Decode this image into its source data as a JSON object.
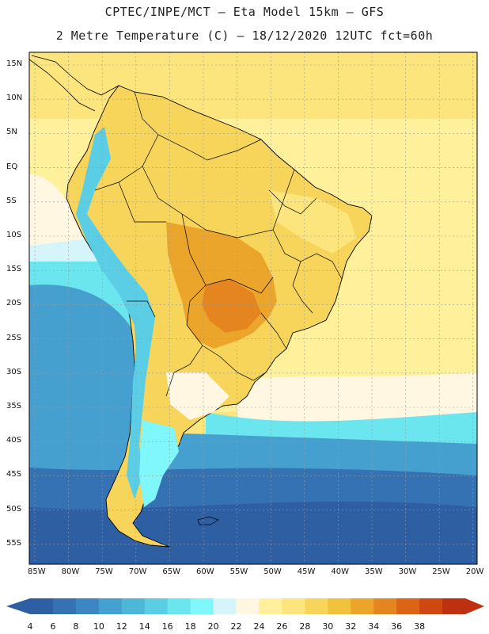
{
  "title_line1": "CPTEC/INPE/MCT  –   Eta Model 15km  –  GFS",
  "title_line2": "2 Metre Temperature (C)  –  18/12/2020 12UTC fct=60h",
  "lat_labels": [
    "15N",
    "10N",
    "5N",
    "EQ",
    "5S",
    "10S",
    "15S",
    "20S",
    "25S",
    "30S",
    "35S",
    "40S",
    "45S",
    "50S",
    "55S"
  ],
  "lon_labels": [
    "85W",
    "80W",
    "75W",
    "70W",
    "65W",
    "60W",
    "55W",
    "50W",
    "45W",
    "40W",
    "35W",
    "30W",
    "25W",
    "20W"
  ],
  "colorbar": {
    "labels": [
      "4",
      "6",
      "8",
      "10",
      "12",
      "14",
      "16",
      "18",
      "20",
      "22",
      "24",
      "26",
      "28",
      "30",
      "32",
      "34",
      "36",
      "38"
    ],
    "colors": [
      "#2e5fa3",
      "#3572b4",
      "#3c86c4",
      "#45a0cf",
      "#4db7d8",
      "#5bcde4",
      "#6be6ef",
      "#7ff7fb",
      "#d6f5fb",
      "#fff7e1",
      "#fff19b",
      "#fde57d",
      "#f7d55b",
      "#f1c33d",
      "#eca52b",
      "#e5851f",
      "#dc6515",
      "#cf4812",
      "#bd3110"
    ]
  },
  "regions": {
    "ocean_north": "#fde57d",
    "ocean_tropical": "#fff19b",
    "ocean_cool": "#fff7e1",
    "ocean_pale": "#d6f5fb",
    "ocean_cyan": "#6be6ef",
    "ocean_teal": "#45a0cf",
    "ocean_blue": "#3572b4",
    "ocean_deep": "#2e5fa3",
    "land_hot": "#f7d55b",
    "land_hotter": "#eca52b",
    "land_hottest": "#e5851f",
    "andes": "#5bcde4"
  }
}
